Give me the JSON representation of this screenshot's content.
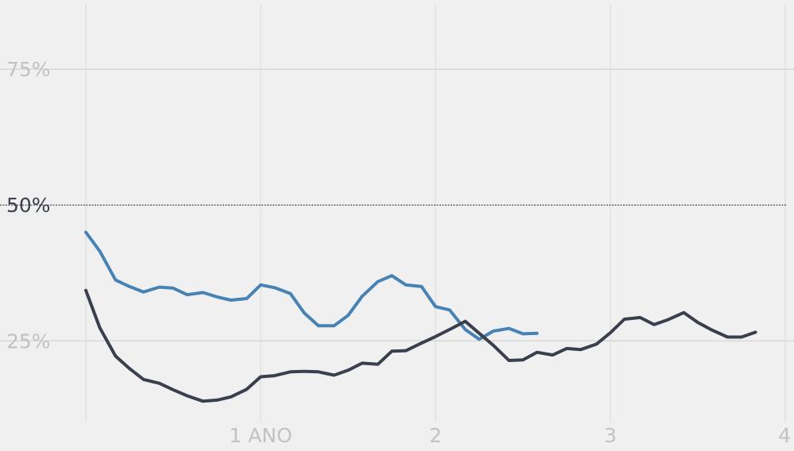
{
  "chart_data": {
    "type": "line",
    "xlim": [
      0,
      4
    ],
    "ylim": [
      10,
      87
    ],
    "x_ticks": [
      {
        "value": 1,
        "label": "1 ANO"
      },
      {
        "value": 2,
        "label": "2"
      },
      {
        "value": 3,
        "label": "3"
      },
      {
        "value": 4,
        "label": "4"
      }
    ],
    "y_ticks": [
      {
        "value": 25,
        "label": "25%"
      },
      {
        "value": 50,
        "label": "50%"
      },
      {
        "value": 75,
        "label": "75%"
      }
    ],
    "reference_line": {
      "value": 50,
      "style": "dotted",
      "color": "#222222"
    },
    "grid": true,
    "series": [
      {
        "color": "#4682b4",
        "x": [
          0.0,
          0.08,
          0.17,
          0.25,
          0.33,
          0.42,
          0.5,
          0.58,
          0.67,
          0.75,
          0.83,
          0.92,
          1.0,
          1.08,
          1.17,
          1.25,
          1.33,
          1.42,
          1.5,
          1.58,
          1.67,
          1.75,
          1.83,
          1.92,
          2.0,
          2.08,
          2.17,
          2.25,
          2.33,
          2.42,
          2.5,
          2.58
        ],
        "values": [
          45.0,
          41.5,
          36.2,
          35.0,
          34.0,
          34.9,
          34.7,
          33.5,
          33.9,
          33.1,
          32.5,
          32.8,
          35.3,
          34.8,
          33.7,
          30.1,
          27.8,
          27.8,
          29.7,
          33.2,
          35.9,
          37.0,
          35.3,
          35.0,
          31.3,
          30.7,
          27.1,
          25.3,
          26.8,
          27.3,
          26.3,
          26.4
        ]
      },
      {
        "color": "#3a3f4e",
        "x": [
          0.0,
          0.08,
          0.17,
          0.25,
          0.33,
          0.42,
          0.5,
          0.58,
          0.67,
          0.75,
          0.83,
          0.92,
          1.0,
          1.08,
          1.17,
          1.25,
          1.33,
          1.42,
          1.5,
          1.58,
          1.67,
          1.75,
          1.83,
          1.92,
          2.0,
          2.08,
          2.17,
          2.25,
          2.33,
          2.42,
          2.5,
          2.58,
          2.67,
          2.75,
          2.83,
          2.92,
          3.0,
          3.08,
          3.17,
          3.25,
          3.33,
          3.42,
          3.5,
          3.58,
          3.67,
          3.75,
          3.83
        ],
        "values": [
          34.3,
          27.4,
          22.2,
          19.9,
          17.9,
          17.2,
          16.0,
          14.9,
          13.9,
          14.1,
          14.7,
          16.1,
          18.4,
          18.6,
          19.3,
          19.4,
          19.3,
          18.7,
          19.6,
          20.9,
          20.7,
          23.1,
          23.2,
          24.6,
          25.8,
          27.1,
          28.6,
          26.4,
          24.2,
          21.4,
          21.5,
          22.9,
          22.4,
          23.6,
          23.4,
          24.4,
          26.5,
          29.0,
          29.3,
          28.0,
          28.9,
          30.2,
          28.4,
          27.0,
          25.7,
          25.7,
          26.6
        ]
      }
    ]
  }
}
